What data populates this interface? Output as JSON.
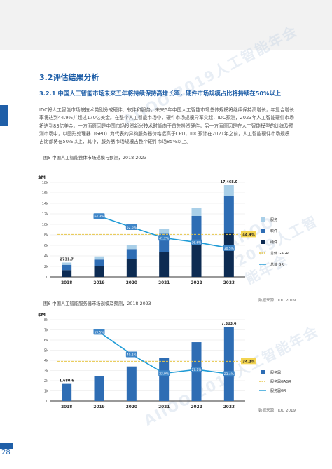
{
  "section": {
    "title": "3.2评估结果分析",
    "subtitle": "3.2.1 中国人工智能市场未来五年将持续保持高增长率，硬件市场规模占比将持续在50%以上",
    "paragraph": "IDC将人工智能市场按技术类别分成硬件、软件和服务。未来5年中国人工智能市场总体规模将继续保持高增长，年复合增长率将达到44.9%并超过170亿美金。在整个人工智能市场中，硬件市场规模异军突起，IDC预测，2023年人工智能硬件市场将达到83亿美金。一方面原因是中国市场投资新兴技术时倾向于首先投资硬件，另一方面原因是在人工智能模型的训练及预测市场中，以图形处理器（GPU）为代表的异构服务器价格远高于CPU，IDC预计在2021年之前，人工智能硬件市场规模占比都将在50%以上，其中，服务器市场规模占整个硬件市场85%以上。"
  },
  "page_number": "28",
  "watermark_text": "AIIOO 2019人工智能年会",
  "colors": {
    "accent": "#1f5fa8",
    "service": "#a9cfe8",
    "software": "#2e6db4",
    "hardware": "#0d2b52",
    "gagr_line": "#e8c74a",
    "gr_line": "#1f9bd6",
    "gagr_label_bg": "#f3d451"
  },
  "chart_data": [
    {
      "type": "bar",
      "caption": "图5 中国人工智能整体市场规模与预测，2018-2023",
      "unit": "$M",
      "categories": [
        "2018",
        "2019",
        "2020",
        "2021",
        "2022",
        "2023"
      ],
      "yticks": [
        "0",
        "2k",
        "4k",
        "6k",
        "8k",
        "10k",
        "12k",
        "14k",
        "16k",
        "18k"
      ],
      "ylim": [
        0,
        18000
      ],
      "stacked": true,
      "series": [
        {
          "name": "硬件",
          "values": [
            1300,
            2000,
            3400,
            4800,
            6100,
            8300
          ]
        },
        {
          "name": "软件",
          "values": [
            1000,
            1300,
            1900,
            3400,
            5500,
            7100
          ]
        },
        {
          "name": "服务",
          "values": [
            431.7,
            600,
            800,
            1000,
            1500,
            2068
          ]
        }
      ],
      "bar_labels": {
        "2018": "2731.7",
        "2023": "17,468.0"
      },
      "gagr": {
        "name": "总体 GAGR",
        "value": 44.9,
        "label": "44.9%"
      },
      "gr": {
        "name": "总体 GR",
        "labels": [
          "64.3%",
          "52.6%",
          "41.2%",
          "36.6%",
          "30.5%"
        ],
        "values": [
          64.3,
          52.6,
          41.2,
          36.6,
          30.5
        ]
      },
      "source": "数据来源：IDC 2019"
    },
    {
      "type": "bar",
      "caption": "图6 中国人工智能服务器市场规模及预测，2018-2023",
      "unit": "$M",
      "categories": [
        "2018",
        "2019",
        "2020",
        "2021",
        "2022",
        "2023"
      ],
      "yticks": [
        "0",
        "1k",
        "2k",
        "3k",
        "4k",
        "5k",
        "6k",
        "7k",
        "8k"
      ],
      "ylim": [
        0,
        8000
      ],
      "series": [
        {
          "name": "服务器",
          "values": [
            1680.6,
            2450,
            3400,
            4270,
            5790,
            7303.4
          ]
        }
      ],
      "bar_labels": {
        "2018": "1,680.6",
        "2023": "7,303.4"
      },
      "gagr": {
        "name": "服务器GAGR",
        "value": 34.2,
        "label": "34.2%"
      },
      "gr": {
        "name": "服务器GR",
        "labels": [
          "59.5%",
          "40.1%",
          "23.9%",
          "27.1%",
          "23.4%"
        ],
        "values": [
          59.5,
          40.1,
          23.9,
          27.1,
          23.4
        ]
      },
      "source": "数据来源：IDC 2019"
    }
  ]
}
